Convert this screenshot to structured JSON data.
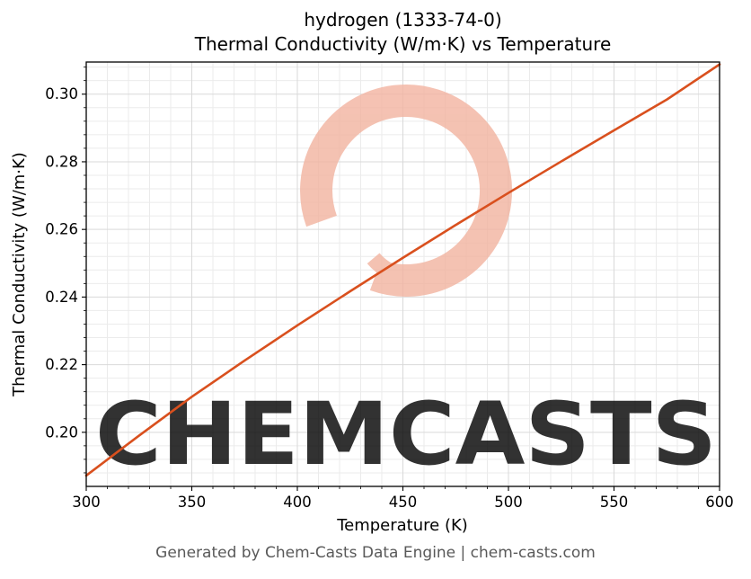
{
  "title": {
    "line1": "hydrogen (1333-74-0)",
    "line2": "Thermal Conductivity (W/m·K) vs Temperature"
  },
  "footer": "Generated by Chem-Casts Data Engine | chem-casts.com",
  "watermark": {
    "text": "CHEMCASTS",
    "color": "#f2b3a0"
  },
  "colors": {
    "line": "#d9501e",
    "grid_major": "#d9d9d9",
    "grid_minor": "#ebebeb",
    "axis": "#000000",
    "footer_text": "#595959"
  },
  "chart_data": {
    "type": "line",
    "title": "hydrogen (1333-74-0) — Thermal Conductivity (W/m·K) vs Temperature",
    "xlabel": "Temperature (K)",
    "ylabel": "Thermal Conductivity (W/m·K)",
    "series_name": "thermal conductivity",
    "x": [
      300,
      325,
      350,
      375,
      400,
      425,
      450,
      475,
      500,
      525,
      550,
      575,
      600
    ],
    "y": [
      0.1872,
      0.199,
      0.2105,
      0.2212,
      0.2316,
      0.2417,
      0.2516,
      0.2613,
      0.2708,
      0.2801,
      0.2893,
      0.2984,
      0.3088
    ],
    "xlim": [
      300,
      600
    ],
    "ylim": [
      0.184,
      0.3095
    ],
    "x_ticks": [
      300,
      350,
      400,
      450,
      500,
      550,
      600
    ],
    "y_ticks": [
      0.2,
      0.22,
      0.24,
      0.26,
      0.28,
      0.3
    ],
    "x_minor_step": 10,
    "y_minor_step": 0.004,
    "grid": true,
    "legend": false,
    "line_color": "#d9501e"
  }
}
